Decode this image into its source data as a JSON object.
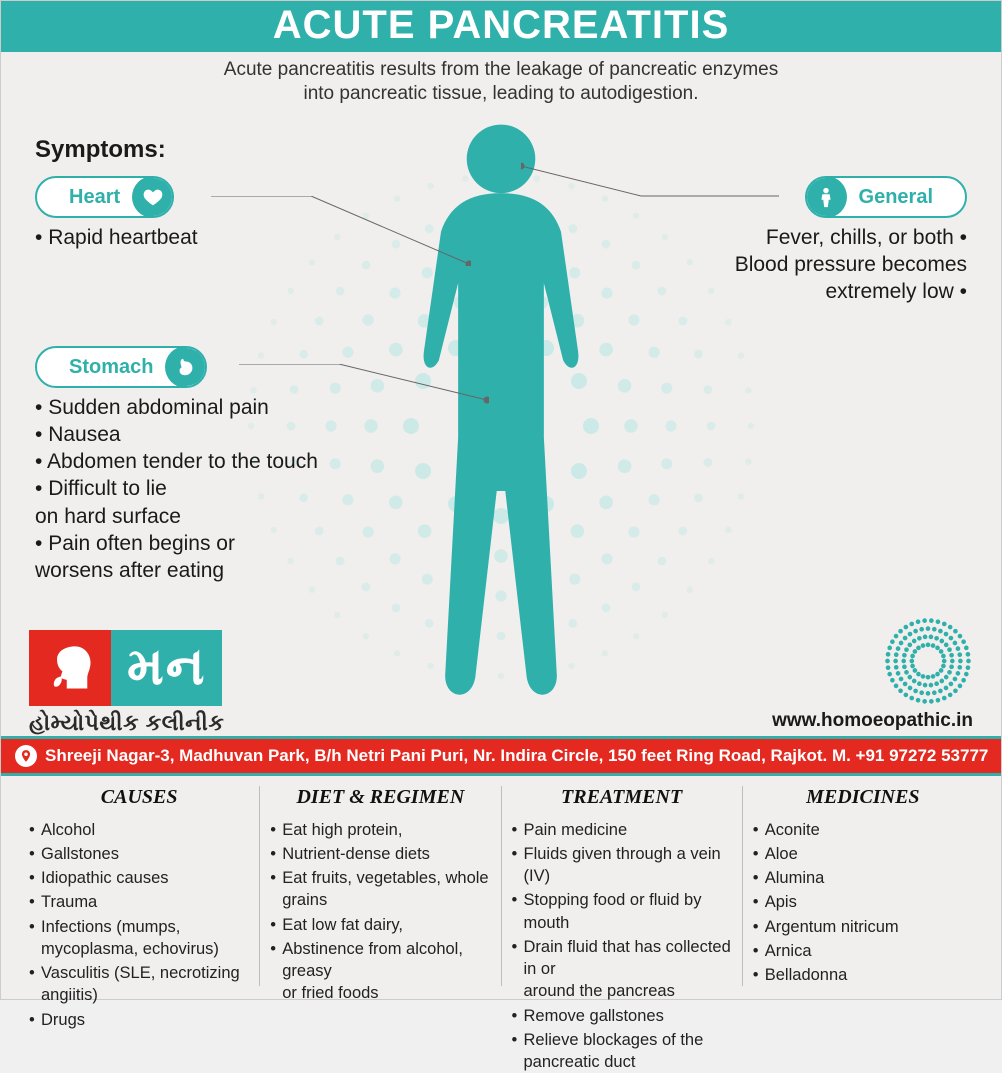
{
  "header": {
    "title": "ACUTE PANCREATITIS",
    "subtitle_line1": "Acute pancreatitis results from the leakage of pancreatic enzymes",
    "subtitle_line2": "into pancreatic tissue, leading to autodigestion."
  },
  "palette": {
    "teal": "#2fb0ab",
    "red": "#e42a20",
    "bg": "#f0efed",
    "text": "#1a1a1a",
    "dot": "#b7e3e1"
  },
  "symptoms": {
    "heading": "Symptoms:",
    "heart": {
      "label": "Heart",
      "items": [
        "Rapid heartbeat"
      ]
    },
    "general": {
      "label": "General",
      "items": [
        "Fever, chills, or both",
        "Blood pressure becomes\nextremely low"
      ]
    },
    "stomach": {
      "label": "Stomach",
      "items": [
        "Sudden abdominal pain",
        "Nausea",
        "Abdomen tender to the touch",
        "Difficult to lie\non hard surface",
        "Pain often begins or\nworsens after eating"
      ]
    }
  },
  "brand": {
    "name": "મન",
    "tagline": "હોમ્યોપેથીક કલીનીક",
    "website": "www.homoeopathic.in"
  },
  "address": "Shreeji Nagar-3, Madhuvan Park, B/h Netri Pani Puri, Nr. Indira Circle, 150 feet Ring Road, Rajkot. M. +91 97272 53777",
  "columns": {
    "causes": {
      "title": "CAUSES",
      "items": [
        "Alcohol",
        "Gallstones",
        "Idiopathic causes",
        "Trauma",
        "Infections (mumps, mycoplasma, echovirus)",
        "Vasculitis (SLE, necrotizing angiitis)",
        "Drugs"
      ]
    },
    "diet": {
      "title": "DIET & REGIMEN",
      "items": [
        "Eat high protein,",
        "Nutrient-dense diets",
        "Eat fruits, vegetables, whole grains",
        "Eat low fat dairy,",
        "Abstinence from alcohol, greasy\nor fried foods"
      ]
    },
    "treatment": {
      "title": "TREATMENT",
      "items": [
        "Pain medicine",
        "Fluids given through a vein (IV)",
        "Stopping food or fluid by mouth",
        "Drain fluid that has collected in or\naround the pancreas",
        "Remove gallstones",
        "Relieve blockages of the pancreatic duct"
      ]
    },
    "medicines": {
      "title": "MEDICINES",
      "items": [
        "Aconite",
        "Aloe",
        "Alumina",
        "Apis",
        "Argentum nitricum",
        "Arnica",
        "Belladonna"
      ]
    }
  }
}
